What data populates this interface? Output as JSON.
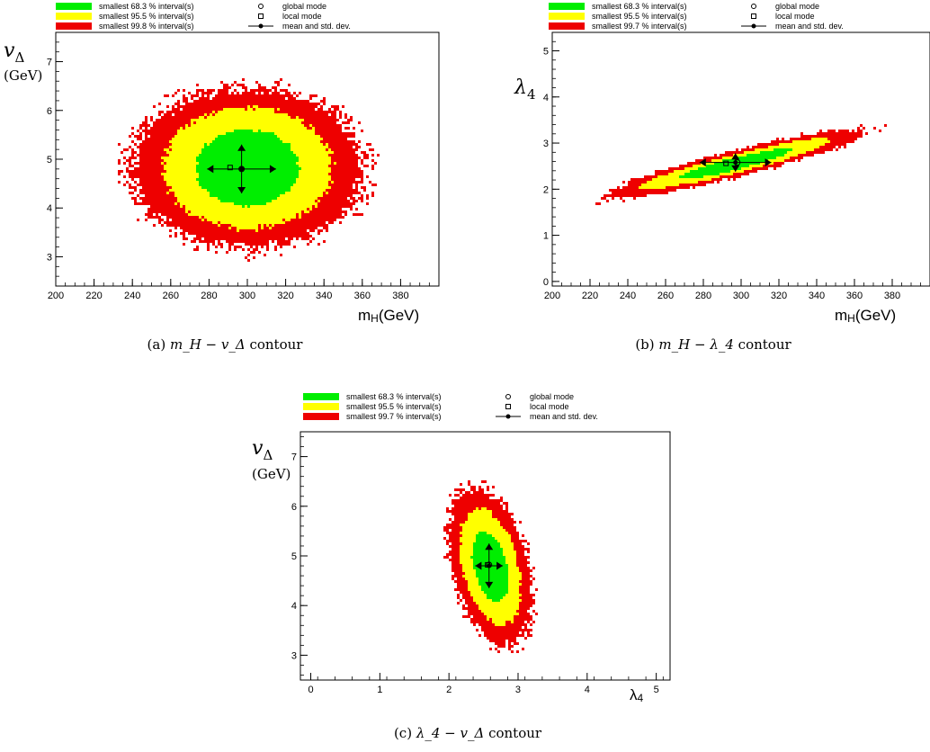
{
  "panels": [
    {
      "caption": {
        "tag": "(a)",
        "math": "m_H − v_Δ",
        "word": "contour"
      },
      "legend": {
        "intervals": [
          "smallest 68.3 % interval(s)",
          "smallest 95.5 % interval(s)",
          "smallest 99.8 % interval(s)"
        ],
        "markers": [
          "global mode",
          "local mode",
          "mean and std. dev."
        ]
      },
      "ylabel": {
        "symbol": "v",
        "sub": "Δ",
        "unit": "(GeV)"
      },
      "xlabel": {
        "symbol": "m",
        "sub": "H",
        "unit": "(GeV)"
      }
    },
    {
      "caption": {
        "tag": "(b)",
        "math": "m_H − λ_4",
        "word": "contour"
      },
      "legend": {
        "intervals": [
          "smallest 68.3 % interval(s)",
          "smallest 95.5 % interval(s)",
          "smallest 99.7 % interval(s)"
        ],
        "markers": [
          "global mode",
          "local mode",
          "mean and std. dev."
        ]
      },
      "ylabel": {
        "symbol": "λ",
        "sub": "4",
        "unit": ""
      },
      "xlabel": {
        "symbol": "m",
        "sub": "H",
        "unit": "(GeV)"
      }
    },
    {
      "caption": {
        "tag": "(c)",
        "math": "λ_4 − v_Δ",
        "word": "contour"
      },
      "legend": {
        "intervals": [
          "smallest 68.3 % interval(s)",
          "smallest 95.5 % interval(s)",
          "smallest 99.7 % interval(s)"
        ],
        "markers": [
          "global mode",
          "local mode",
          "mean and std. dev."
        ]
      },
      "ylabel": {
        "symbol": "v",
        "sub": "Δ",
        "unit": "(GeV)"
      },
      "xlabel": {
        "symbol": "λ",
        "sub": "4",
        "unit": ""
      }
    }
  ],
  "colors": {
    "green": "#00ee00",
    "yellow": "#ffff00",
    "red": "#ee0000"
  },
  "chart_data": [
    {
      "type": "heatmap",
      "xlim": [
        200,
        400
      ],
      "ylim": [
        2.4,
        7.6
      ],
      "x_ticks": [
        200,
        220,
        240,
        260,
        280,
        300,
        320,
        340,
        360,
        380
      ],
      "y_ticks": [
        3,
        4,
        5,
        6,
        7
      ],
      "regions": {
        "p99": {
          "cx": 300,
          "cy": 4.82,
          "rx": 60,
          "ry": 1.6,
          "angle_deg": 0
        },
        "p95": {
          "cx": 300,
          "cy": 4.82,
          "rx": 44,
          "ry": 1.24,
          "angle_deg": 0
        },
        "p68": {
          "cx": 300,
          "cy": 4.82,
          "rx": 27,
          "ry": 0.78,
          "angle_deg": 0
        }
      },
      "global_mode": [
        297,
        4.8
      ],
      "local_mode": [
        291,
        4.83
      ],
      "mean": [
        297,
        4.8
      ],
      "std": [
        18,
        0.5
      ]
    },
    {
      "type": "heatmap",
      "xlim": [
        200,
        400
      ],
      "ylim": [
        -0.1,
        5.4
      ],
      "x_ticks": [
        200,
        220,
        240,
        260,
        280,
        300,
        320,
        340,
        360,
        380
      ],
      "y_ticks": [
        0,
        1,
        2,
        3,
        4,
        5
      ],
      "regions": {
        "p99": {
          "cx": 297,
          "cy": 2.55,
          "rx": 70,
          "ry": 0.28,
          "angle_deg": 14
        },
        "p95": {
          "cx": 297,
          "cy": 2.55,
          "rx": 52,
          "ry": 0.2,
          "angle_deg": 14
        },
        "p68": {
          "cx": 297,
          "cy": 2.55,
          "rx": 31,
          "ry": 0.13,
          "angle_deg": 14
        }
      },
      "global_mode": [
        298,
        2.58
      ],
      "local_mode": [
        292,
        2.56
      ],
      "mean": [
        297,
        2.58
      ],
      "std": [
        19,
        0.2
      ]
    },
    {
      "type": "heatmap",
      "xlim": [
        -0.15,
        5.2
      ],
      "ylim": [
        2.5,
        7.5
      ],
      "x_ticks": [
        0,
        1,
        2,
        3,
        4,
        5
      ],
      "y_ticks": [
        3,
        4,
        5,
        6,
        7
      ],
      "regions": {
        "p99": {
          "cx": 2.6,
          "cy": 4.78,
          "rx": 0.55,
          "ry": 1.6,
          "angle_deg": 14
        },
        "p95": {
          "cx": 2.6,
          "cy": 4.78,
          "rx": 0.4,
          "ry": 1.2,
          "angle_deg": 14
        },
        "p68": {
          "cx": 2.6,
          "cy": 4.78,
          "rx": 0.24,
          "ry": 0.72,
          "angle_deg": 14
        }
      },
      "global_mode": [
        2.58,
        4.82
      ],
      "local_mode": [
        2.56,
        4.82
      ],
      "mean": [
        2.58,
        4.8
      ],
      "std": [
        0.2,
        0.45
      ]
    }
  ]
}
